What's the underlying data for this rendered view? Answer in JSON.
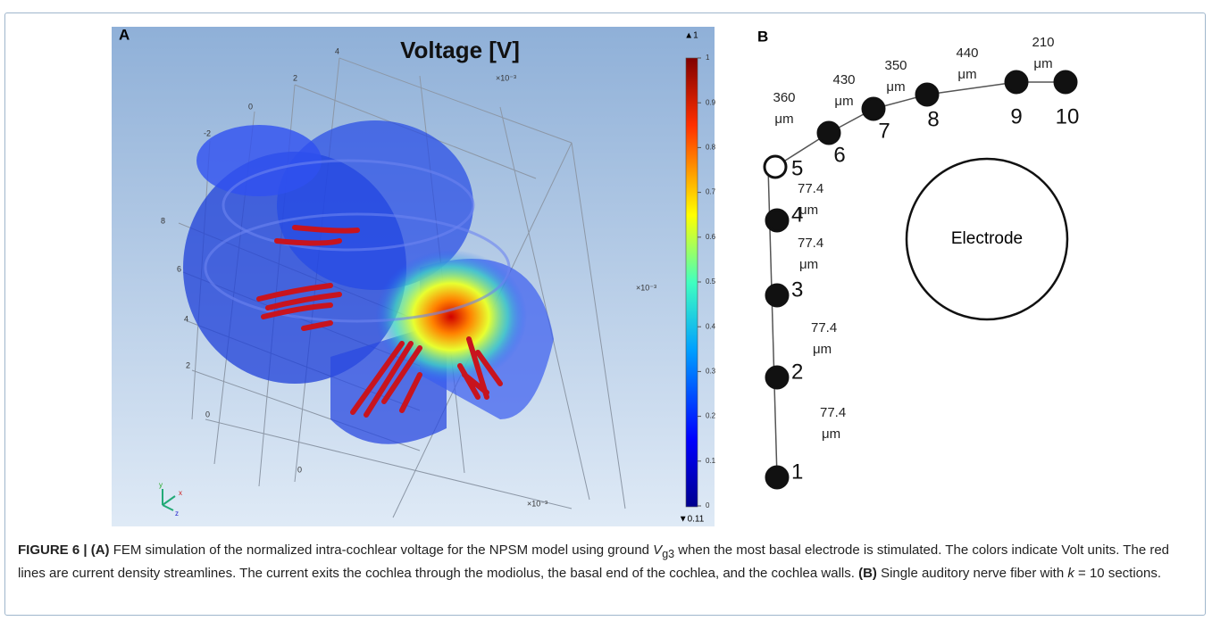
{
  "panel_a": {
    "label": "A",
    "title": "Voltage [V]",
    "colorbar": {
      "max_marker": "▲1",
      "min_marker": "▼0.11",
      "ticks": [
        "1",
        "0.9",
        "0.8",
        "0.7",
        "0.6",
        "0.5",
        "0.4",
        "0.3",
        "0.2",
        "0.1",
        "0"
      ]
    },
    "axis_labels": [
      "×10⁻³",
      "×10⁻³",
      "×10⁻³"
    ],
    "tick_labels": [
      "4",
      "2",
      "0",
      "-2",
      "8",
      "6",
      "4",
      "2",
      "0",
      "0"
    ],
    "triad": [
      "y",
      "x",
      "z"
    ]
  },
  "panel_b": {
    "label": "B",
    "electrode": "Electrode",
    "nodes": [
      "1",
      "2",
      "3",
      "4",
      "5",
      "6",
      "7",
      "8",
      "9",
      "10"
    ],
    "distances": [
      {
        "value": "77.4",
        "unit": "μm"
      },
      {
        "value": "77.4",
        "unit": "μm"
      },
      {
        "value": "77.4",
        "unit": "μm"
      },
      {
        "value": "77.4",
        "unit": "μm"
      },
      {
        "value": "360",
        "unit": "μm"
      },
      {
        "value": "430",
        "unit": "μm"
      },
      {
        "value": "350",
        "unit": "μm"
      },
      {
        "value": "440",
        "unit": "μm"
      },
      {
        "value": "210",
        "unit": "μm"
      }
    ]
  },
  "caption": {
    "label_a": "FIGURE 6 | (A)",
    "text_a1": " FEM simulation of the normalized intra-cochlear voltage for the NPSM model using ground ",
    "symbol_v": "V",
    "subscript": "g3",
    "text_a2": " when the most basal electrode is stimulated. The colors indicate Volt units. The red lines are current density streamlines. The current exits the cochlea through the modiolus, the basal end of the cochlea, and the cochlea walls. ",
    "label_b": "(B)",
    "text_b1": " Single auditory nerve fiber with ",
    "symbol_k": "k",
    "text_b2": " = 10 sections."
  }
}
